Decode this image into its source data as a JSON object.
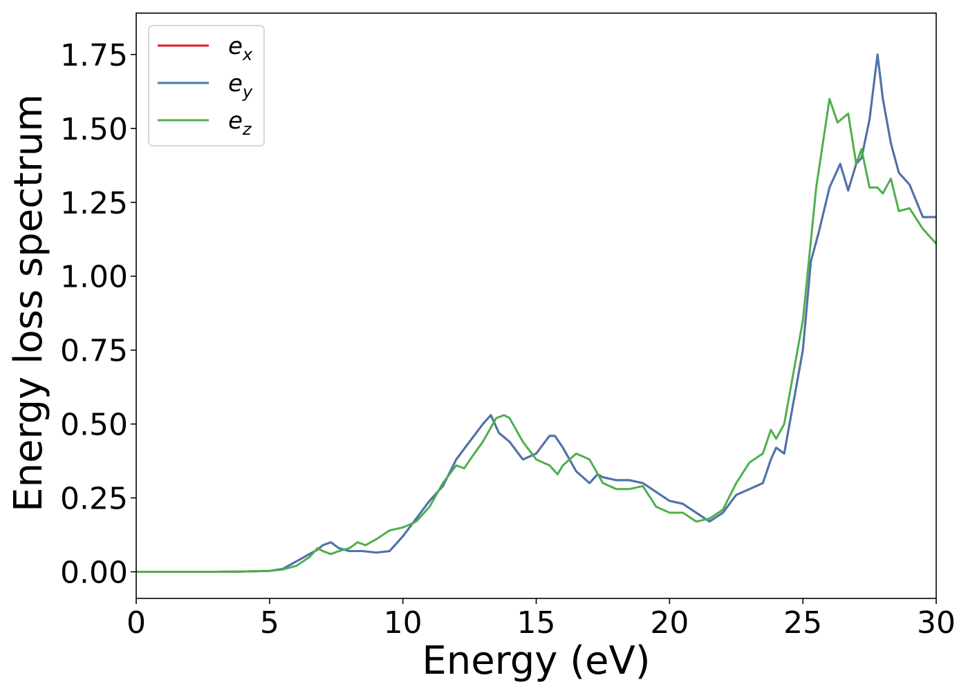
{
  "chart_data": {
    "type": "line",
    "xlabel": "Energy (eV)",
    "ylabel": "Energy loss spectrum",
    "xlim": [
      0,
      30
    ],
    "ylim": [
      -0.09,
      1.89
    ],
    "xticks": [
      "0",
      "5",
      "10",
      "15",
      "20",
      "25",
      "30"
    ],
    "yticks": [
      "0.00",
      "0.25",
      "0.50",
      "0.75",
      "1.00",
      "1.25",
      "1.50",
      "1.75"
    ],
    "grid": false,
    "legend_position": "top-left",
    "series": [
      {
        "name": "e",
        "subscript": "x",
        "color": "#e41a1c",
        "x": [
          0,
          1,
          2,
          3,
          4,
          4.5,
          5,
          5.5,
          6,
          6.5,
          6.8,
          7,
          7.3,
          7.6,
          8,
          8.5,
          9,
          9.5,
          10,
          10.5,
          11,
          11.5,
          12,
          12.5,
          13,
          13.3,
          13.6,
          14,
          14.5,
          15,
          15.5,
          15.7,
          16,
          16.5,
          17,
          17.3,
          17.5,
          18,
          18.5,
          19,
          19.5,
          20,
          20.5,
          21,
          21.5,
          22,
          22.5,
          23,
          23.5,
          23.8,
          24,
          24.3,
          24.6,
          25,
          25.3,
          25.6,
          26,
          26.4,
          26.7,
          27,
          27.2,
          27.5,
          27.8,
          28,
          28.3,
          28.6,
          29,
          29.5,
          30
        ],
        "y": [
          0,
          0,
          0,
          0,
          0.001,
          0.002,
          0.003,
          0.01,
          0.035,
          0.06,
          0.075,
          0.09,
          0.1,
          0.08,
          0.07,
          0.07,
          0.065,
          0.07,
          0.12,
          0.18,
          0.24,
          0.29,
          0.38,
          0.44,
          0.5,
          0.53,
          0.47,
          0.44,
          0.38,
          0.4,
          0.46,
          0.46,
          0.42,
          0.34,
          0.3,
          0.33,
          0.32,
          0.31,
          0.31,
          0.3,
          0.27,
          0.24,
          0.23,
          0.2,
          0.17,
          0.2,
          0.26,
          0.28,
          0.3,
          0.38,
          0.42,
          0.4,
          0.55,
          0.75,
          1.05,
          1.15,
          1.3,
          1.38,
          1.29,
          1.38,
          1.4,
          1.53,
          1.75,
          1.6,
          1.45,
          1.35,
          1.31,
          1.2,
          1.2
        ]
      },
      {
        "name": "e",
        "subscript": "y",
        "color": "#4a74b0",
        "x": [
          0,
          1,
          2,
          3,
          4,
          4.5,
          5,
          5.5,
          6,
          6.5,
          6.8,
          7,
          7.3,
          7.6,
          8,
          8.5,
          9,
          9.5,
          10,
          10.5,
          11,
          11.5,
          12,
          12.5,
          13,
          13.3,
          13.6,
          14,
          14.5,
          15,
          15.5,
          15.7,
          16,
          16.5,
          17,
          17.3,
          17.5,
          18,
          18.5,
          19,
          19.5,
          20,
          20.5,
          21,
          21.5,
          22,
          22.5,
          23,
          23.5,
          23.8,
          24,
          24.3,
          24.6,
          25,
          25.3,
          25.6,
          26,
          26.4,
          26.7,
          27,
          27.2,
          27.5,
          27.8,
          28,
          28.3,
          28.6,
          29,
          29.5,
          30
        ],
        "y": [
          0,
          0,
          0,
          0,
          0.001,
          0.002,
          0.003,
          0.01,
          0.035,
          0.06,
          0.075,
          0.09,
          0.1,
          0.08,
          0.07,
          0.07,
          0.065,
          0.07,
          0.12,
          0.18,
          0.24,
          0.29,
          0.38,
          0.44,
          0.5,
          0.53,
          0.47,
          0.44,
          0.38,
          0.4,
          0.46,
          0.46,
          0.42,
          0.34,
          0.3,
          0.33,
          0.32,
          0.31,
          0.31,
          0.3,
          0.27,
          0.24,
          0.23,
          0.2,
          0.17,
          0.2,
          0.26,
          0.28,
          0.3,
          0.38,
          0.42,
          0.4,
          0.55,
          0.75,
          1.05,
          1.15,
          1.3,
          1.38,
          1.29,
          1.38,
          1.4,
          1.53,
          1.75,
          1.6,
          1.45,
          1.35,
          1.31,
          1.2,
          1.2
        ]
      },
      {
        "name": "e",
        "subscript": "z",
        "color": "#4daf4a",
        "x": [
          0,
          1,
          2,
          3,
          4,
          4.5,
          5,
          5.5,
          6,
          6.5,
          6.8,
          7,
          7.3,
          7.6,
          8,
          8.3,
          8.6,
          9,
          9.5,
          10,
          10.5,
          11,
          11.5,
          12,
          12.3,
          12.6,
          13,
          13.5,
          13.8,
          14,
          14.5,
          15,
          15.5,
          15.8,
          16,
          16.5,
          17,
          17.5,
          18,
          18.5,
          19,
          19.5,
          20,
          20.5,
          21,
          21.5,
          22,
          22.5,
          23,
          23.5,
          23.8,
          24,
          24.3,
          24.6,
          25,
          25.5,
          26,
          26.3,
          26.7,
          27,
          27.2,
          27.5,
          27.8,
          28,
          28.3,
          28.6,
          29,
          29.5,
          30
        ],
        "y": [
          0,
          0,
          0,
          0,
          0.001,
          0.002,
          0.003,
          0.008,
          0.02,
          0.05,
          0.08,
          0.07,
          0.06,
          0.07,
          0.08,
          0.1,
          0.09,
          0.11,
          0.14,
          0.15,
          0.17,
          0.22,
          0.3,
          0.36,
          0.35,
          0.39,
          0.44,
          0.52,
          0.53,
          0.52,
          0.44,
          0.38,
          0.36,
          0.33,
          0.36,
          0.4,
          0.38,
          0.3,
          0.28,
          0.28,
          0.29,
          0.22,
          0.2,
          0.2,
          0.17,
          0.18,
          0.21,
          0.3,
          0.37,
          0.4,
          0.48,
          0.45,
          0.5,
          0.65,
          0.85,
          1.3,
          1.6,
          1.52,
          1.55,
          1.38,
          1.43,
          1.3,
          1.3,
          1.28,
          1.33,
          1.22,
          1.23,
          1.16,
          1.11
        ]
      }
    ]
  }
}
